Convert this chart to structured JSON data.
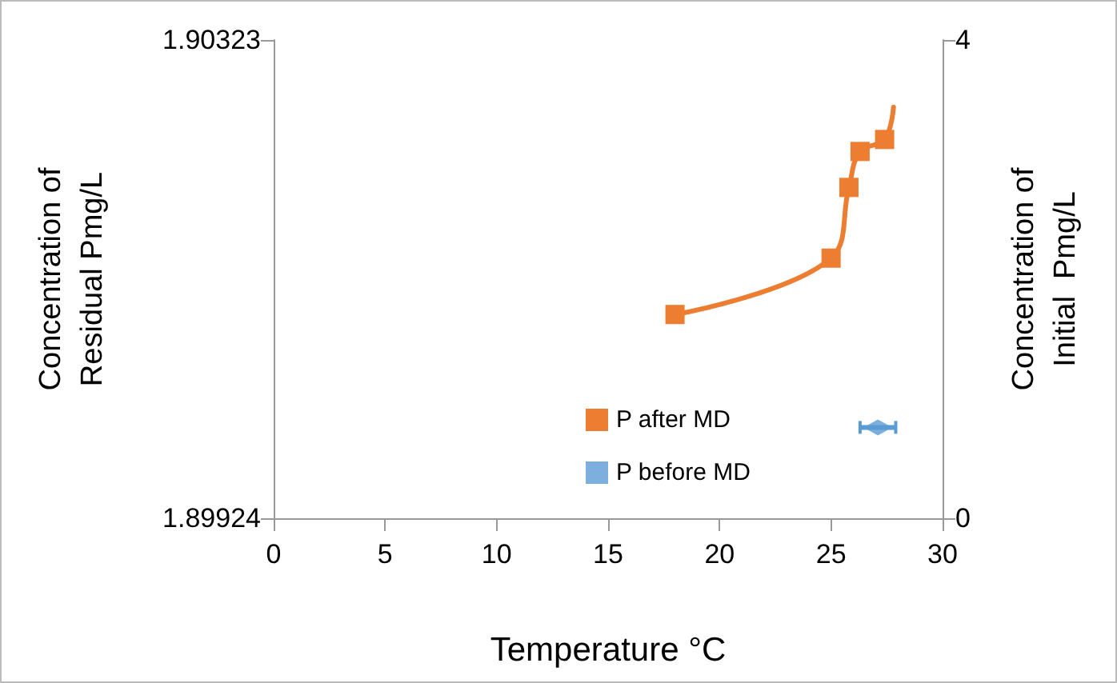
{
  "chart_data": {
    "type": "line",
    "xlabel": "Temperature °C",
    "ylabel": "Concentration of\nResidual Pmg/L",
    "y2label": "Concentration of\nInitial  Pmg/L",
    "xlim": [
      0,
      30
    ],
    "xticks": [
      0,
      5,
      10,
      15,
      20,
      25,
      30
    ],
    "ylim": [
      1.89924,
      1.90323
    ],
    "yticks": [
      1.89924,
      1.90323
    ],
    "y2lim": [
      0,
      4
    ],
    "y2ticks": [
      0,
      4
    ],
    "grid": false,
    "legend": "bottom",
    "line_style": "solid",
    "series": [
      {
        "name": "P after MD",
        "color": "#ed7d31",
        "marker": "square",
        "x": [
          18,
          25,
          25.8,
          26.3,
          27.4,
          27.8
        ],
        "values": [
          1.90094,
          1.90141,
          1.902,
          1.9023,
          1.9024,
          1.90267
        ]
      },
      {
        "name": "P before MD",
        "type": "scatter",
        "axis": "y2",
        "color": "#5b9bd5",
        "marker": "diamond",
        "x": [
          27.1
        ],
        "values": [
          0.76
        ],
        "xerrors": [
          0.8
        ]
      }
    ]
  }
}
